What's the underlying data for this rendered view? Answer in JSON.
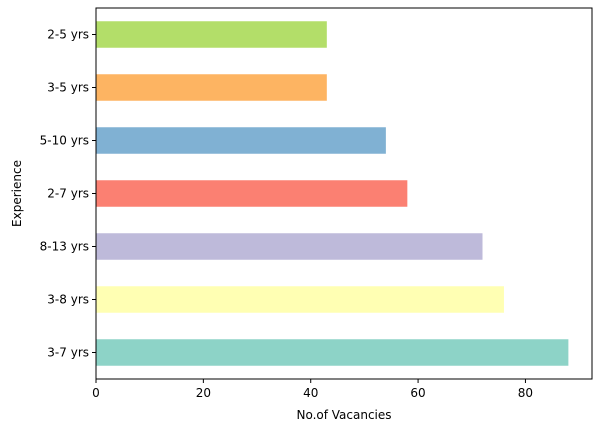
{
  "chart_data": {
    "type": "bar",
    "orientation": "horizontal",
    "title": "",
    "xlabel": "No.of Vacancies",
    "ylabel": "Experience",
    "categories": [
      "3-7 yrs",
      "3-8 yrs",
      "8-13 yrs",
      "2-7 yrs",
      "5-10 yrs",
      "3-5 yrs",
      "2-5 yrs"
    ],
    "values": [
      88,
      76,
      72,
      58,
      54,
      43,
      43
    ],
    "colors": [
      "#8dd3c7",
      "#ffffb3",
      "#bebada",
      "#fb8072",
      "#80b1d3",
      "#fdb462",
      "#b3de69"
    ],
    "xlim": [
      0,
      92.4
    ],
    "xticks": [
      0,
      20,
      40,
      60,
      80
    ],
    "grid": false,
    "legend": "none"
  }
}
